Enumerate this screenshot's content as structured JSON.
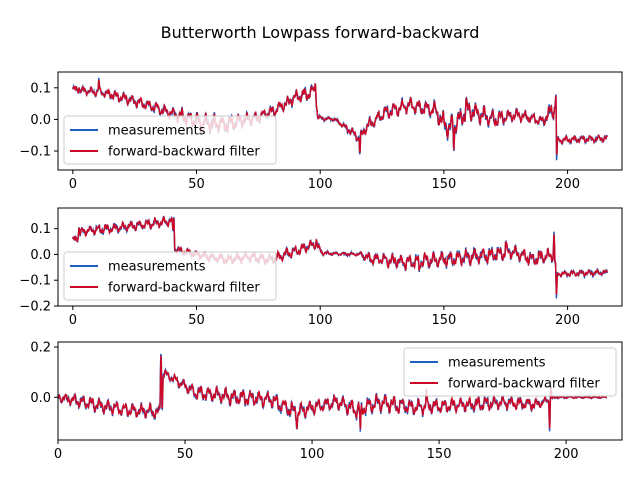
{
  "figure": {
    "title": "Butterworth Lowpass forward-backward"
  },
  "colors": {
    "measurements": "#1f5fbf",
    "filtered": "#cc0a28",
    "legend_border": "#cccccc"
  },
  "chart_data": [
    {
      "type": "line",
      "xlim": [
        -6,
        222
      ],
      "ylim": [
        -0.16,
        0.15
      ],
      "xticks": [
        0,
        50,
        100,
        150,
        200
      ],
      "yticks": [
        0.1,
        0.0,
        -0.1
      ],
      "ytick_labels": [
        "0.1",
        "0.0",
        "−0.1"
      ],
      "legend_position": "lower-left",
      "grid": false,
      "series": [
        {
          "name": "measurements"
        },
        {
          "name": "forward-backward filter"
        }
      ],
      "segments": [
        [
          0,
          0.095,
          0.012
        ],
        [
          12,
          0.085,
          0.015
        ],
        [
          22,
          0.065,
          0.018
        ],
        [
          32,
          0.04,
          0.018
        ],
        [
          40,
          0.02,
          0.02
        ],
        [
          52,
          -0.01,
          0.035
        ],
        [
          62,
          -0.015,
          0.03
        ],
        [
          74,
          0.005,
          0.02
        ],
        [
          82,
          0.03,
          0.02
        ],
        [
          90,
          0.07,
          0.022
        ],
        [
          98,
          0.09,
          0.025
        ],
        [
          99,
          0.005,
          0.008
        ],
        [
          106,
          0.0,
          0.005
        ],
        [
          116,
          -0.06,
          0.018
        ],
        [
          118,
          -0.03,
          0.02
        ],
        [
          126,
          0.02,
          0.025
        ],
        [
          136,
          0.045,
          0.025
        ],
        [
          146,
          0.03,
          0.03
        ],
        [
          152,
          -0.03,
          0.04
        ],
        [
          160,
          0.03,
          0.035
        ],
        [
          170,
          0.0,
          0.03
        ],
        [
          180,
          0.015,
          0.02
        ],
        [
          190,
          -0.005,
          0.015
        ],
        [
          195,
          0.04,
          0.04
        ],
        [
          196,
          -0.065,
          0.012
        ],
        [
          216,
          -0.06,
          0.012
        ]
      ],
      "spikes": [
        [
          2.5,
          0.1
        ],
        [
          10.5,
          0.13
        ],
        [
          98,
          0.12
        ],
        [
          116,
          -0.115
        ],
        [
          154,
          -0.11
        ],
        [
          159,
          0.07
        ],
        [
          195.3,
          0.105
        ],
        [
          195.6,
          -0.14
        ]
      ]
    },
    {
      "type": "line",
      "xlim": [
        -6,
        222
      ],
      "ylim": [
        -0.2,
        0.18
      ],
      "xticks": [
        0,
        50,
        100,
        150,
        200
      ],
      "yticks": [
        0.1,
        0.0,
        -0.1,
        -0.2
      ],
      "ytick_labels": [
        "0.1",
        "0.0",
        "−0.1",
        "−0.2"
      ],
      "legend_position": "lower-left",
      "grid": false,
      "series": [
        {
          "name": "measurements"
        },
        {
          "name": "forward-backward filter"
        }
      ],
      "segments": [
        [
          0,
          0.05,
          0.02
        ],
        [
          4,
          0.09,
          0.02
        ],
        [
          20,
          0.105,
          0.02
        ],
        [
          40,
          0.13,
          0.02
        ],
        [
          41,
          0.02,
          0.015
        ],
        [
          50,
          0.0,
          0.015
        ],
        [
          62,
          -0.02,
          0.02
        ],
        [
          72,
          -0.01,
          0.02
        ],
        [
          80,
          -0.02,
          0.02
        ],
        [
          92,
          0.02,
          0.025
        ],
        [
          98,
          0.04,
          0.02
        ],
        [
          101,
          0.005,
          0.008
        ],
        [
          116,
          0.0,
          0.006
        ],
        [
          120,
          -0.015,
          0.025
        ],
        [
          134,
          -0.03,
          0.03
        ],
        [
          150,
          -0.02,
          0.035
        ],
        [
          166,
          -0.005,
          0.035
        ],
        [
          178,
          0.01,
          0.03
        ],
        [
          186,
          -0.02,
          0.03
        ],
        [
          194,
          0.0,
          0.03
        ],
        [
          196,
          -0.075,
          0.012
        ],
        [
          216,
          -0.07,
          0.012
        ]
      ],
      "spikes": [
        [
          2.5,
          0.11
        ],
        [
          40.8,
          0.16
        ],
        [
          98.5,
          0.06
        ],
        [
          116.5,
          0.01
        ],
        [
          140,
          -0.07
        ],
        [
          175,
          0.06
        ],
        [
          194.5,
          0.09
        ],
        [
          195.5,
          -0.18
        ]
      ]
    },
    {
      "type": "line",
      "xlim": [
        0,
        222
      ],
      "ylim": [
        -0.17,
        0.22
      ],
      "xticks": [
        0,
        50,
        100,
        150,
        200
      ],
      "yticks": [
        0.2,
        0.0
      ],
      "ytick_labels": [
        "0.2",
        "0.0"
      ],
      "legend_position": "upper-right",
      "grid": false,
      "series": [
        {
          "name": "measurements"
        },
        {
          "name": "forward-backward filter"
        }
      ],
      "segments": [
        [
          0,
          0.0,
          0.02
        ],
        [
          10,
          -0.02,
          0.03
        ],
        [
          26,
          -0.05,
          0.03
        ],
        [
          40,
          -0.06,
          0.03
        ],
        [
          41,
          0.1,
          0.02
        ],
        [
          46,
          0.07,
          0.02
        ],
        [
          54,
          0.02,
          0.03
        ],
        [
          70,
          0.0,
          0.035
        ],
        [
          84,
          -0.01,
          0.035
        ],
        [
          94,
          -0.06,
          0.04
        ],
        [
          100,
          -0.04,
          0.03
        ],
        [
          110,
          -0.02,
          0.03
        ],
        [
          118,
          -0.05,
          0.04
        ],
        [
          126,
          -0.02,
          0.04
        ],
        [
          140,
          -0.04,
          0.035
        ],
        [
          160,
          -0.03,
          0.03
        ],
        [
          176,
          -0.02,
          0.03
        ],
        [
          188,
          -0.03,
          0.025
        ],
        [
          196,
          0.0,
          0.005
        ],
        [
          216,
          0.0,
          0.004
        ]
      ],
      "spikes": [
        [
          40.5,
          0.2
        ],
        [
          41,
          -0.07
        ],
        [
          94,
          -0.13
        ],
        [
          119,
          -0.14
        ],
        [
          145,
          0.04
        ],
        [
          193.5,
          -0.14
        ],
        [
          194,
          0.05
        ]
      ]
    }
  ]
}
